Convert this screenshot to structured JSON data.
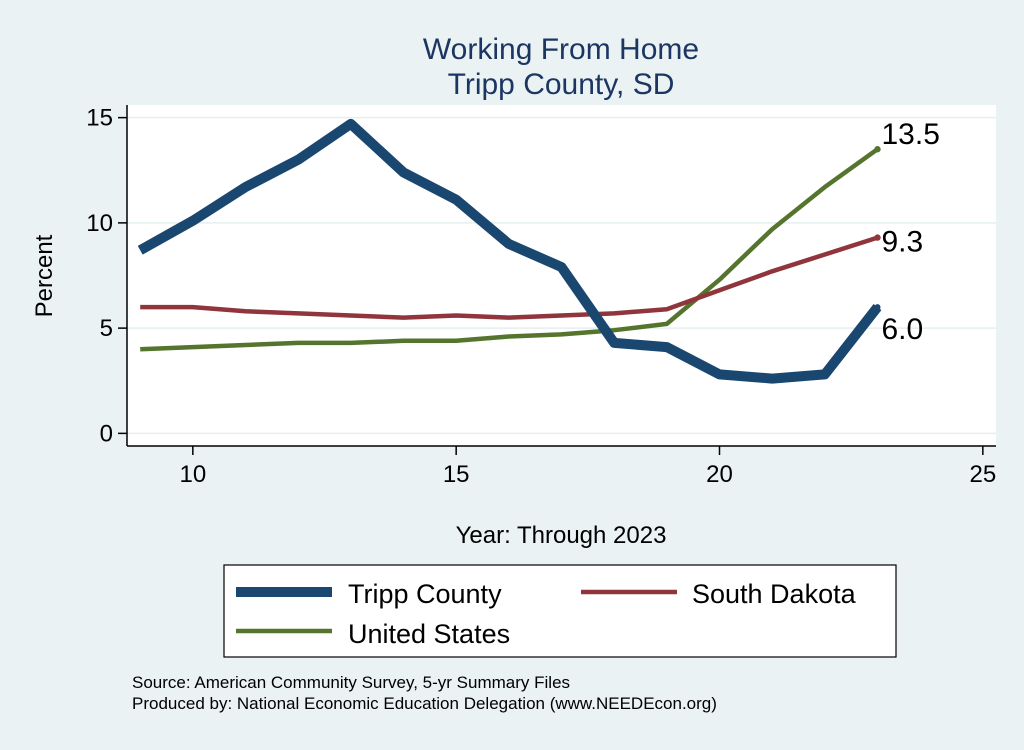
{
  "chart_data": {
    "type": "line",
    "title": "Working From Home",
    "subtitle": "Tripp County, SD",
    "xlabel": "Year: Through 2023",
    "ylabel": "Percent",
    "xlim": [
      8.75,
      25.25
    ],
    "ylim": [
      -0.6,
      15.6
    ],
    "xticks": [
      "10",
      "15",
      "20",
      "25"
    ],
    "yticks": [
      "0",
      "5",
      "10",
      "15"
    ],
    "grid": true,
    "legend_position": "bottom",
    "x": [
      9,
      10,
      11,
      12,
      13,
      14,
      15,
      16,
      17,
      18,
      19,
      20,
      21,
      22,
      23
    ],
    "series": [
      {
        "name": "Tripp County",
        "color": "#1a476f",
        "values": [
          8.7,
          10.1,
          11.7,
          13.0,
          14.7,
          12.4,
          11.1,
          9.0,
          7.9,
          4.3,
          4.1,
          2.8,
          2.6,
          2.8,
          6.0
        ],
        "end_label": "6.0"
      },
      {
        "name": "South Dakota",
        "color": "#90353b",
        "values": [
          6.0,
          6.0,
          5.8,
          5.7,
          5.6,
          5.5,
          5.6,
          5.5,
          5.6,
          5.7,
          5.9,
          6.8,
          7.7,
          8.5,
          9.3
        ],
        "end_label": "9.3"
      },
      {
        "name": "United States",
        "color": "#55752f",
        "values": [
          4.0,
          4.1,
          4.2,
          4.3,
          4.3,
          4.4,
          4.4,
          4.6,
          4.7,
          4.9,
          5.2,
          7.3,
          9.7,
          11.7,
          13.5
        ],
        "end_label": "13.5"
      }
    ]
  },
  "footer": {
    "source": "Source: American Community Survey, 5-yr Summary Files",
    "produced_by": "Produced by: National Economic Education Delegation (www.NEEDEcon.org)"
  }
}
